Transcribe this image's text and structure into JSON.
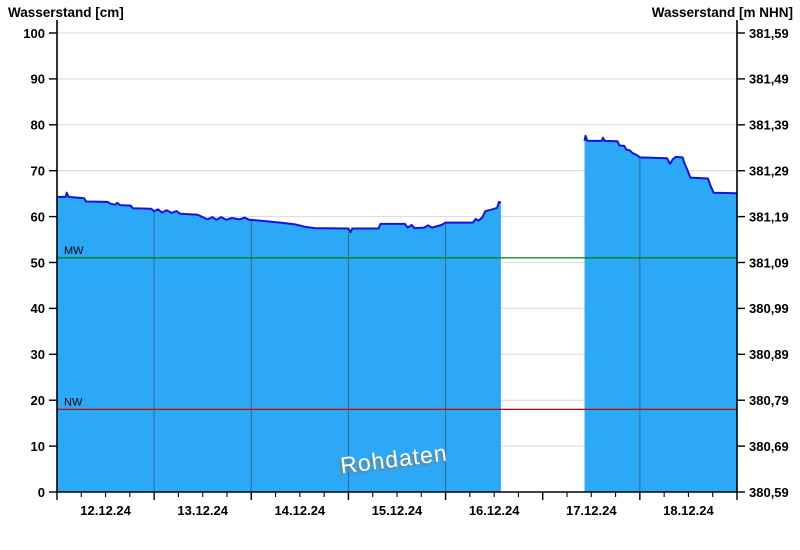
{
  "header": {
    "title_left": "Wasserstand [cm]",
    "title_right": "Wasserstand [m NHN]"
  },
  "watermark": "Rohdaten",
  "chart_data": {
    "type": "area",
    "x_unit": "days_since_12.12.24_00:00",
    "x_range_days": [
      0,
      7
    ],
    "x_tick_labels": [
      "12.12.24",
      "13.12.24",
      "14.12.24",
      "15.12.24",
      "16.12.24",
      "17.12.24",
      "18.12.24"
    ],
    "x_minor_ticks_per_day": 4,
    "y_left": {
      "title": "Wasserstand [cm]",
      "min": 0,
      "max": 100,
      "step": 10,
      "tick_labels": [
        "0",
        "10",
        "20",
        "30",
        "40",
        "50",
        "60",
        "70",
        "80",
        "90",
        "100"
      ]
    },
    "y_right": {
      "title": "Wasserstand [m NHN]",
      "min": 380.59,
      "max": 381.59,
      "step": 0.1,
      "tick_labels": [
        "380,59",
        "380,69",
        "380,79",
        "380,89",
        "380,99",
        "381,09",
        "381,19",
        "381,29",
        "381,39",
        "381,49",
        "381,59"
      ]
    },
    "reference_lines": [
      {
        "label": "MW",
        "value_cm": 51,
        "color": "#008000"
      },
      {
        "label": "NW",
        "value_cm": 18,
        "color": "#cf0000"
      }
    ],
    "grid": {
      "h_color": "#d9d9d9",
      "v_color": "#3d5a78"
    },
    "series": [
      {
        "name": "Wasserstand Rohdaten",
        "unit": "cm",
        "color_line": "#1414e0",
        "color_fill": "#2ba9f7",
        "segments": [
          [
            [
              0,
              64.3
            ],
            [
              0.09,
              64.3
            ],
            [
              0.1,
              65.2
            ],
            [
              0.12,
              64.3
            ],
            [
              0.28,
              64.0
            ],
            [
              0.3,
              63.3
            ],
            [
              0.52,
              63.2
            ],
            [
              0.55,
              62.8
            ],
            [
              0.6,
              62.6
            ],
            [
              0.62,
              63.0
            ],
            [
              0.65,
              62.5
            ],
            [
              0.76,
              62.4
            ],
            [
              0.78,
              61.8
            ],
            [
              0.97,
              61.7
            ],
            [
              1.0,
              61.2
            ],
            [
              1.04,
              61.6
            ],
            [
              1.08,
              60.9
            ],
            [
              1.13,
              61.4
            ],
            [
              1.18,
              60.8
            ],
            [
              1.23,
              61.2
            ],
            [
              1.27,
              60.6
            ],
            [
              1.45,
              60.4
            ],
            [
              1.5,
              59.9
            ],
            [
              1.55,
              59.4
            ],
            [
              1.6,
              59.9
            ],
            [
              1.64,
              59.3
            ],
            [
              1.69,
              59.9
            ],
            [
              1.74,
              59.3
            ],
            [
              1.8,
              59.7
            ],
            [
              1.88,
              59.4
            ],
            [
              1.93,
              59.8
            ],
            [
              1.98,
              59.3
            ],
            [
              2.1,
              59.1
            ],
            [
              2.3,
              58.7
            ],
            [
              2.45,
              58.3
            ],
            [
              2.55,
              57.8
            ],
            [
              2.65,
              57.5
            ],
            [
              3.0,
              57.4
            ],
            [
              3.02,
              56.6
            ],
            [
              3.04,
              57.4
            ],
            [
              3.31,
              57.4
            ],
            [
              3.33,
              58.4
            ],
            [
              3.58,
              58.4
            ],
            [
              3.61,
              57.6
            ],
            [
              3.65,
              58.2
            ],
            [
              3.68,
              57.5
            ],
            [
              3.78,
              57.6
            ],
            [
              3.82,
              58.1
            ],
            [
              3.86,
              57.6
            ],
            [
              3.96,
              58.2
            ],
            [
              4.0,
              58.7
            ],
            [
              4.28,
              58.7
            ],
            [
              4.31,
              59.5
            ],
            [
              4.34,
              59.1
            ],
            [
              4.38,
              59.9
            ],
            [
              4.41,
              61.2
            ],
            [
              4.47,
              61.5
            ],
            [
              4.53,
              61.9
            ],
            [
              4.55,
              63.2
            ],
            [
              4.57,
              63.0
            ]
          ],
          [
            [
              5.43,
              76.5
            ],
            [
              5.44,
              77.6
            ],
            [
              5.46,
              76.5
            ],
            [
              5.61,
              76.5
            ],
            [
              5.62,
              77.2
            ],
            [
              5.64,
              76.5
            ],
            [
              5.77,
              76.4
            ],
            [
              5.79,
              75.5
            ],
            [
              5.84,
              75.4
            ],
            [
              5.86,
              74.6
            ],
            [
              5.9,
              74.4
            ],
            [
              5.92,
              73.9
            ],
            [
              5.97,
              73.4
            ],
            [
              6.0,
              72.9
            ],
            [
              6.28,
              72.7
            ],
            [
              6.31,
              71.5
            ],
            [
              6.34,
              72.5
            ],
            [
              6.37,
              73.0
            ],
            [
              6.44,
              72.9
            ],
            [
              6.46,
              71.6
            ],
            [
              6.49,
              70.1
            ],
            [
              6.52,
              68.5
            ],
            [
              6.7,
              68.3
            ],
            [
              6.73,
              66.6
            ],
            [
              6.76,
              65.2
            ],
            [
              7.0,
              65.1
            ]
          ]
        ]
      }
    ]
  }
}
